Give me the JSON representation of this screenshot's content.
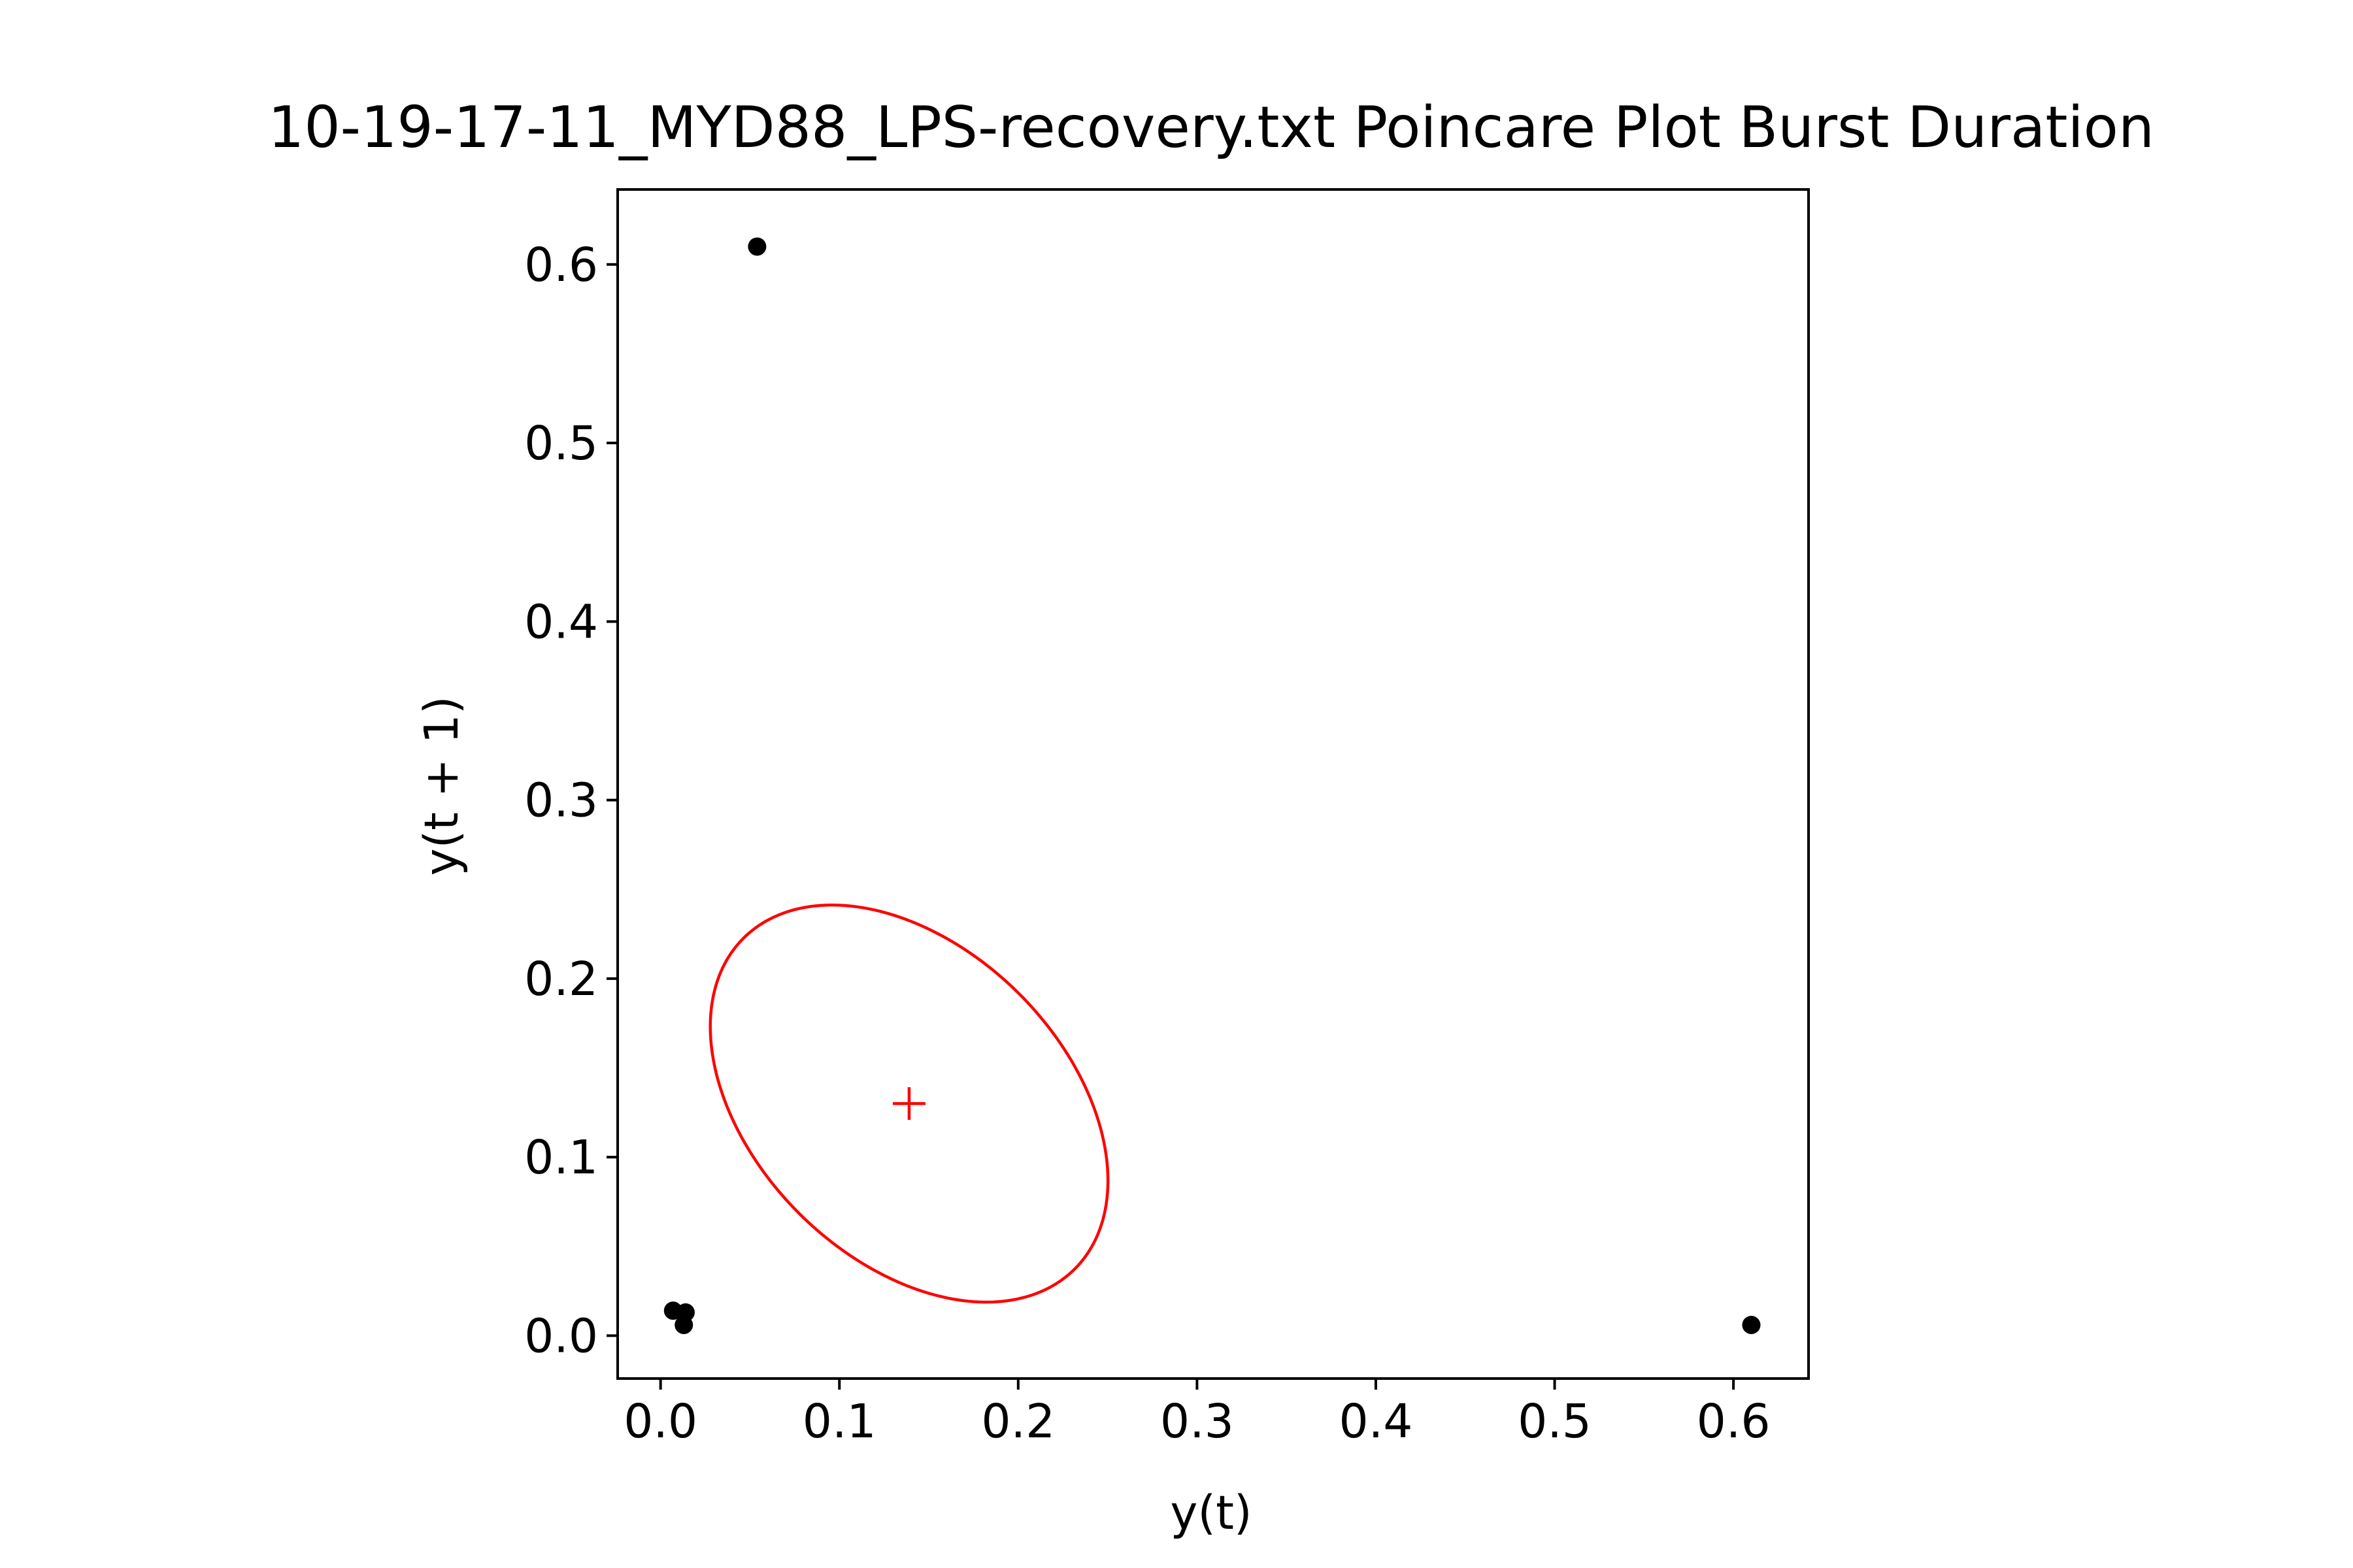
{
  "chart_data": {
    "type": "scatter",
    "title": "10-19-17-11_MYD88_LPS-recovery.txt Poincare Plot Burst Duration",
    "xlabel": "y(t)",
    "ylabel": "y(t + 1)",
    "xlim": [
      -0.024,
      0.642
    ],
    "ylim": [
      -0.024,
      0.642
    ],
    "x_ticks": [
      "0.0",
      "0.1",
      "0.2",
      "0.3",
      "0.4",
      "0.5",
      "0.6"
    ],
    "y_ticks": [
      "0.0",
      "0.1",
      "0.2",
      "0.3",
      "0.4",
      "0.5",
      "0.6"
    ],
    "grid": false,
    "series": [
      {
        "marker": "circle",
        "color": "#000000",
        "x": [
          0.007,
          0.014,
          0.013,
          0.054,
          0.61
        ],
        "y": [
          0.014,
          0.013,
          0.006,
          0.61,
          0.006
        ]
      }
    ],
    "mean_marker": {
      "x": 0.139,
      "y": 0.13,
      "symbol": "+",
      "color": "#ff0000"
    },
    "ellipse": {
      "color": "#ff0000",
      "center": [
        0.139,
        0.13
      ],
      "sd_along_identity": 0.087,
      "sd_across_identity": 0.131
    }
  }
}
